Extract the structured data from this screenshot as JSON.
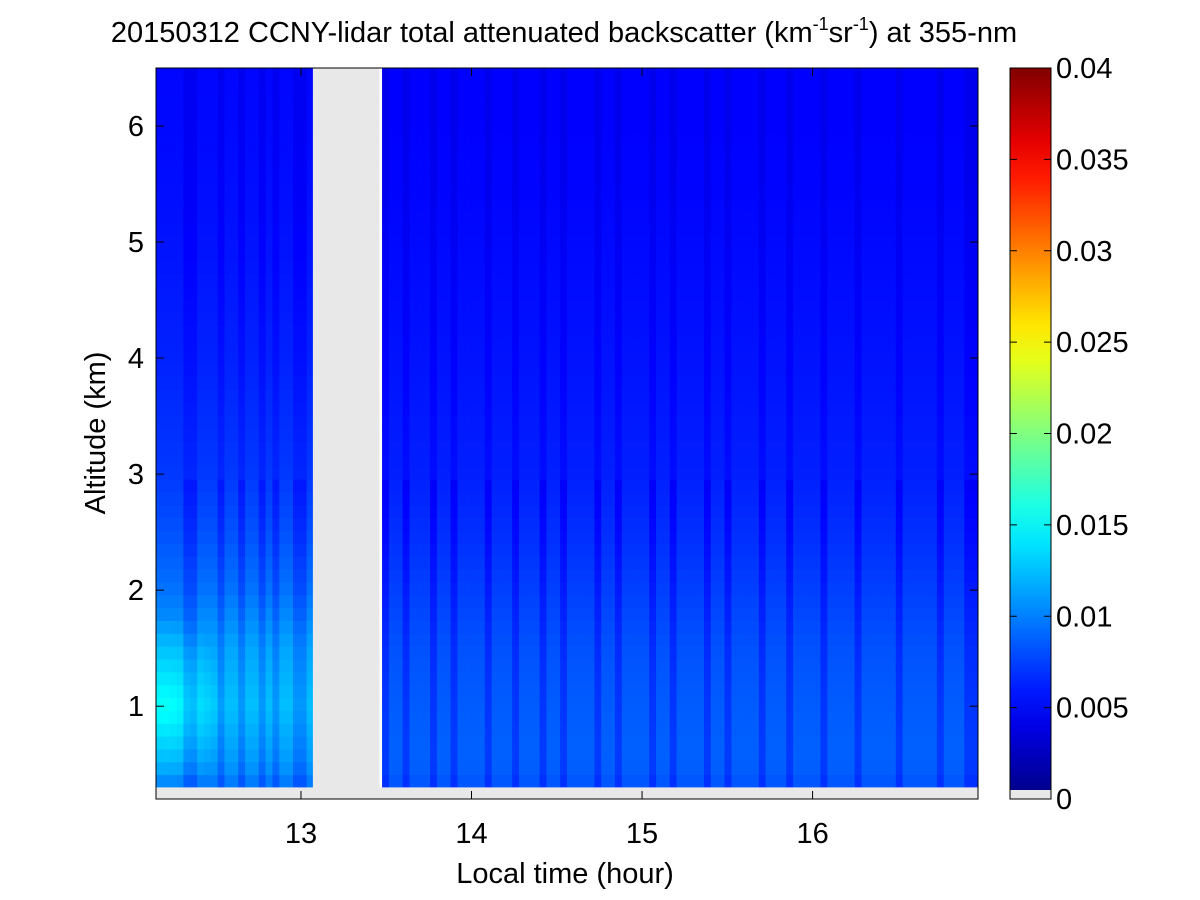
{
  "chart_data": {
    "type": "heatmap",
    "title": {
      "prefix": "20150312 CCNY-lidar total attenuated backscatter (km",
      "exp1": "-1",
      "mid": "sr",
      "exp2": "-1",
      "suffix": ") at 355-nm"
    },
    "xlabel": "Local time (hour)",
    "ylabel": "Altitude (km)",
    "xlim": [
      12.15,
      16.97
    ],
    "ylim": [
      0.2,
      6.5
    ],
    "xticks": [
      13,
      14,
      15,
      16
    ],
    "yticks": [
      1,
      2,
      3,
      4,
      5,
      6
    ],
    "data_start_altitude": 0.3,
    "missing_data": {
      "x_start": 13.07,
      "x_end": 13.46,
      "color": "#e8e8e8"
    },
    "colorbar": {
      "min": 0,
      "max": 0.04,
      "ticks": [
        "0",
        "0.005",
        "0.01",
        "0.015",
        "0.02",
        "0.025",
        "0.03",
        "0.035",
        "0.04"
      ],
      "colormap": "jet",
      "zero_color": "#e8e8e8"
    },
    "value_profile": {
      "altitude": [
        0.3,
        0.5,
        1.0,
        1.5,
        2.0,
        2.5,
        3.0,
        4.0,
        5.0,
        6.0,
        6.5
      ],
      "before_gap": [
        0.0095,
        0.011,
        0.0125,
        0.0115,
        0.0095,
        0.0082,
        0.0072,
        0.0063,
        0.0057,
        0.0053,
        0.0052
      ],
      "after_gap": [
        0.0082,
        0.0088,
        0.0086,
        0.0082,
        0.0075,
        0.0068,
        0.0062,
        0.0057,
        0.0053,
        0.005,
        0.005
      ]
    },
    "near_surface_peak": {
      "x": 12.2,
      "y": 1.0,
      "value": 0.0155
    },
    "dark_streaks_x": [
      12.35,
      12.52,
      12.66,
      12.78,
      12.87,
      12.97,
      13.03,
      13.5,
      13.62,
      13.78,
      13.9,
      14.1,
      14.27,
      14.43,
      14.55,
      14.73,
      14.86,
      15.05,
      15.19,
      15.37,
      15.52,
      15.72,
      15.85,
      16.05,
      16.25,
      16.5,
      16.75,
      16.93
    ]
  }
}
